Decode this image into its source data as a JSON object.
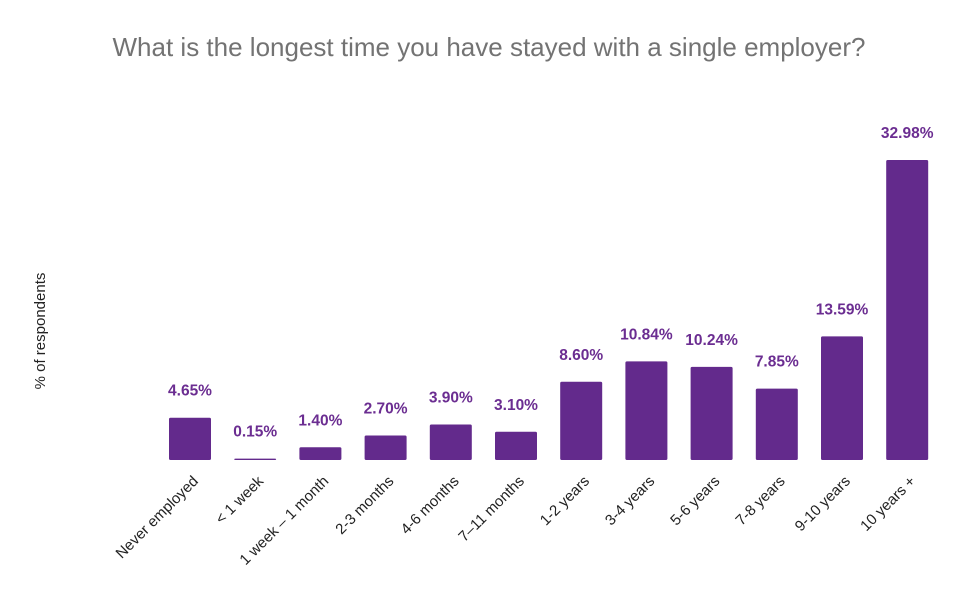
{
  "chart_data": {
    "type": "bar",
    "title": "What is the longest time you have stayed with a single employer?",
    "xlabel": "",
    "ylabel": "% of respondents",
    "ylim": [
      0,
      35
    ],
    "grid": false,
    "legend": "none",
    "bar_color": "#632a8c",
    "label_color": "#6b2d91",
    "categories": [
      "Never employed",
      "< 1 week",
      "1 week – 1 month",
      "2-3 months",
      "4-6 months",
      "7–11 months",
      "1-2 years",
      "3-4 years",
      "5-6 years",
      "7-8 years",
      "9-10 years",
      "10 years +"
    ],
    "values": [
      4.65,
      0.15,
      1.4,
      2.7,
      3.9,
      3.1,
      8.6,
      10.84,
      10.24,
      7.85,
      13.59,
      32.98
    ],
    "data_labels": [
      "4.65%",
      "0.15%",
      "1.40%",
      "2.70%",
      "3.90%",
      "3.10%",
      "8.60%",
      "10.84%",
      "10.24%",
      "7.85%",
      "13.59%",
      "32.98%"
    ]
  }
}
